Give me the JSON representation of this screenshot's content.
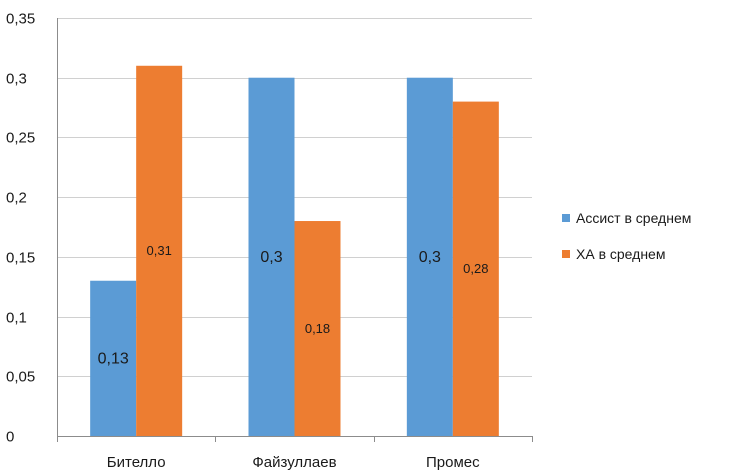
{
  "chart_data": {
    "type": "bar",
    "categories": [
      "Бителло",
      "Файзуллаев",
      "Промес"
    ],
    "series": [
      {
        "name": "Ассист в среднем",
        "values": [
          0.13,
          0.3,
          0.3
        ],
        "labels": [
          "0,13",
          "0,3",
          "0,3"
        ],
        "color": "#5B9BD5"
      },
      {
        "name": "ХА в среднем",
        "values": [
          0.31,
          0.18,
          0.28
        ],
        "labels": [
          "0,31",
          "0,18",
          "0,28"
        ],
        "color": "#ED7D31"
      }
    ],
    "ylim": [
      0,
      0.35
    ],
    "yticks": [
      0,
      0.05,
      0.1,
      0.15,
      0.2,
      0.25,
      0.3,
      0.35
    ],
    "ytick_labels": [
      "0",
      "0,05",
      "0,1",
      "0,15",
      "0,2",
      "0,25",
      "0,3",
      "0,35"
    ],
    "grid": true,
    "legend_position": "right",
    "title": "",
    "xlabel": "",
    "ylabel": ""
  }
}
